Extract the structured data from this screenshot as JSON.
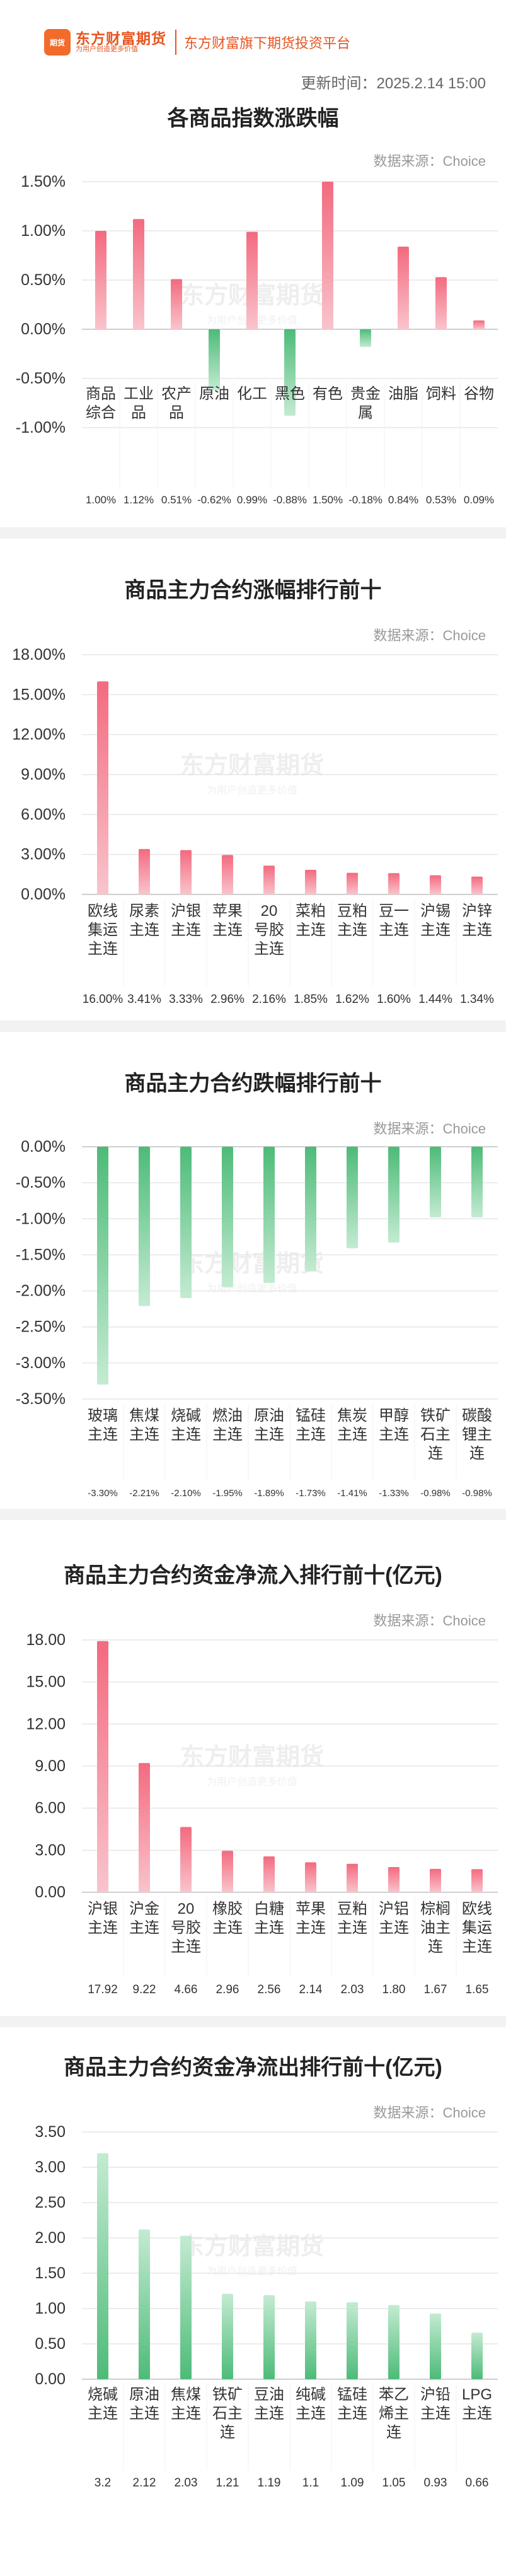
{
  "header": {
    "logo_badge": "期货",
    "logo_name": "东方财富期货",
    "logo_slogan": "为用户创造更多价值",
    "platform": "东方财富旗下期货投资平台",
    "update_time": "更新时间：2025.2.14 15:00"
  },
  "watermark": {
    "name": "东方财富期货",
    "slogan": "为用户创造更多价值"
  },
  "chart_data": [
    {
      "type": "bar",
      "title": "各商品指数涨跌幅",
      "source": "数据来源：Choice",
      "categories": [
        "商品综合",
        "工业品",
        "农产品",
        "原油",
        "化工",
        "黑色",
        "有色",
        "贵金属",
        "油脂",
        "饲料",
        "谷物"
      ],
      "values": [
        1.0,
        1.12,
        0.51,
        -0.62,
        0.99,
        -0.88,
        1.5,
        -0.18,
        0.84,
        0.53,
        0.09
      ],
      "value_labels": [
        "1.00%",
        "1.12%",
        "0.51%",
        "-0.62%",
        "0.99%",
        "-0.88%",
        "1.50%",
        "-0.18%",
        "0.84%",
        "0.53%",
        "0.09%"
      ],
      "yticks": [
        "1.50%",
        "1.00%",
        "0.50%",
        "0.00%",
        "-0.50%",
        "-1.00%"
      ],
      "ylim": [
        -1.0,
        1.5
      ],
      "grid": true
    },
    {
      "type": "bar",
      "title": "商品主力合约涨幅排行前十",
      "source": "数据来源：Choice",
      "categories": [
        "欧线集运主连",
        "尿素主连",
        "沪银主连",
        "苹果主连",
        "20号胶主连",
        "菜粕主连",
        "豆粕主连",
        "豆一主连",
        "沪锡主连",
        "沪锌主连"
      ],
      "values": [
        16.0,
        3.41,
        3.33,
        2.96,
        2.16,
        1.85,
        1.62,
        1.6,
        1.44,
        1.34
      ],
      "value_labels": [
        "16.00%",
        "3.41%",
        "3.33%",
        "2.96%",
        "2.16%",
        "1.85%",
        "1.62%",
        "1.60%",
        "1.44%",
        "1.34%"
      ],
      "yticks": [
        "18.00%",
        "15.00%",
        "12.00%",
        "9.00%",
        "6.00%",
        "3.00%",
        "0.00%"
      ],
      "ylim": [
        0,
        18
      ],
      "grid": true
    },
    {
      "type": "bar",
      "title": "商品主力合约跌幅排行前十",
      "source": "数据来源：Choice",
      "categories": [
        "玻璃主连",
        "焦煤主连",
        "烧碱主连",
        "燃油主连",
        "原油主连",
        "锰硅主连",
        "焦炭主连",
        "甲醇主连",
        "铁矿石主连",
        "碳酸锂主连"
      ],
      "values": [
        -3.3,
        -2.21,
        -2.1,
        -1.95,
        -1.89,
        -1.73,
        -1.41,
        -1.33,
        -0.98,
        -0.98
      ],
      "value_labels": [
        "-3.30%",
        "-2.21%",
        "-2.10%",
        "-1.95%",
        "-1.89%",
        "-1.73%",
        "-1.41%",
        "-1.33%",
        "-0.98%",
        "-0.98%"
      ],
      "yticks": [
        "0.00%",
        "-0.50%",
        "-1.00%",
        "-1.50%",
        "-2.00%",
        "-2.50%",
        "-3.00%",
        "-3.50%"
      ],
      "ylim": [
        -3.5,
        0
      ],
      "grid": true
    },
    {
      "type": "bar",
      "title": "商品主力合约资金净流入排行前十(亿元)",
      "source": "数据来源：Choice",
      "categories": [
        "沪银主连",
        "沪金主连",
        "20号胶主连",
        "橡胶主连",
        "白糖主连",
        "苹果主连",
        "豆粕主连",
        "沪铝主连",
        "棕榈油主连",
        "欧线集运主连"
      ],
      "values": [
        17.92,
        9.22,
        4.66,
        2.96,
        2.56,
        2.14,
        2.03,
        1.8,
        1.67,
        1.65
      ],
      "value_labels": [
        "17.92",
        "9.22",
        "4.66",
        "2.96",
        "2.56",
        "2.14",
        "2.03",
        "1.80",
        "1.67",
        "1.65"
      ],
      "yticks": [
        "18.00",
        "15.00",
        "12.00",
        "9.00",
        "6.00",
        "3.00",
        "0.00"
      ],
      "ylim": [
        0,
        18
      ],
      "grid": true
    },
    {
      "type": "bar",
      "title": "商品主力合约资金净流出排行前十(亿元)",
      "source": "数据来源：Choice",
      "categories": [
        "烧碱主连",
        "原油主连",
        "焦煤主连",
        "铁矿石主连",
        "豆油主连",
        "纯碱主连",
        "锰硅主连",
        "苯乙烯主连",
        "沪铅主连",
        "LPG主连"
      ],
      "values": [
        3.2,
        2.12,
        2.03,
        1.21,
        1.19,
        1.1,
        1.09,
        1.05,
        0.93,
        0.66
      ],
      "value_labels": [
        "3.2",
        "2.12",
        "2.03",
        "1.21",
        "1.19",
        "1.1",
        "1.09",
        "1.05",
        "0.93",
        "0.66"
      ],
      "yticks": [
        "3.50",
        "3.00",
        "2.50",
        "2.00",
        "1.50",
        "1.00",
        "0.50",
        "0.00"
      ],
      "ylim": [
        0,
        3.5
      ],
      "grid": true
    }
  ]
}
